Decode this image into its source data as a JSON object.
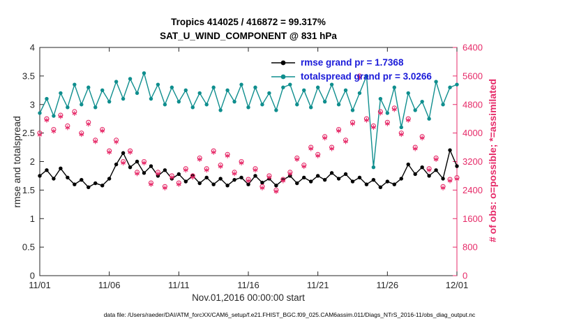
{
  "colors": {
    "axis": "#262626",
    "rmse": "#000000",
    "totalspread": "#0f8e8e",
    "obs": "#e62a68",
    "legend_text": "#1a1ad9"
  },
  "chart_data": {
    "type": "line",
    "title": "Tropics 414025 / 416872 = 99.317%",
    "subtitle": "SAT_U_WIND_COMPONENT @ 831 hPa",
    "xlabel": "Nov.01,2016 00:00:00 start",
    "ylabel_left": "rmse and totalspread",
    "ylabel_right": "# of obs: o=possible; *=assimilated",
    "datafile": "data file: /Users/raeder/DAI/ATM_forcXX/CAM6_setup/f.e21.FHIST_BGC.f09_025.CAM6assim.011/Diags_NTrS_2016-11/obs_diag_output.nc",
    "x_step_days": 0.5,
    "x_range_days": [
      0,
      30
    ],
    "x_ticks": [
      0,
      5,
      10,
      15,
      20,
      25,
      30
    ],
    "x_tick_labels": [
      "11/01",
      "11/06",
      "11/11",
      "11/16",
      "11/21",
      "11/26",
      "12/01"
    ],
    "y_left": {
      "min": 0,
      "max": 4,
      "ticks": [
        0,
        0.5,
        1,
        1.5,
        2,
        2.5,
        3,
        3.5,
        4
      ],
      "tick_labels": [
        "0",
        "0.5",
        "1",
        "1.5",
        "2",
        "2.5",
        "3",
        "3.5",
        "4"
      ]
    },
    "y_right": {
      "min": 0,
      "max": 6400,
      "ticks": [
        0,
        800,
        1600,
        2400,
        3200,
        4000,
        4800,
        5600,
        6400
      ],
      "tick_labels": [
        "0",
        "800",
        "1600",
        "2400",
        "3200",
        "4000",
        "4800",
        "5600",
        "6400"
      ]
    },
    "grid": false,
    "legend_position": "top-center-inside",
    "series": [
      {
        "name": "rmse grand pr = 1.7368",
        "color_key": "rmse",
        "axis": "left",
        "values": [
          1.75,
          1.85,
          1.7,
          1.88,
          1.72,
          1.6,
          1.68,
          1.55,
          1.62,
          1.58,
          1.7,
          1.95,
          2.15,
          1.9,
          2.0,
          1.8,
          1.92,
          1.75,
          1.85,
          1.7,
          1.78,
          1.65,
          1.75,
          1.62,
          1.72,
          1.6,
          1.7,
          1.58,
          1.68,
          1.72,
          1.6,
          1.75,
          1.63,
          1.7,
          1.58,
          1.68,
          1.75,
          1.62,
          1.72,
          1.65,
          1.75,
          1.68,
          1.8,
          1.7,
          1.78,
          1.65,
          1.72,
          1.6,
          1.68,
          1.55,
          1.65,
          1.6,
          1.7,
          1.95,
          1.78,
          1.9,
          1.75,
          1.85,
          1.7,
          2.2,
          1.92
        ]
      },
      {
        "name": "totalspread grand pr = 3.0266",
        "color_key": "totalspread",
        "axis": "left",
        "values": [
          2.85,
          3.1,
          2.8,
          3.2,
          2.95,
          3.35,
          3.0,
          3.3,
          2.95,
          3.25,
          3.05,
          3.4,
          3.1,
          3.45,
          3.2,
          3.55,
          3.1,
          3.35,
          3.0,
          3.3,
          3.05,
          3.25,
          2.95,
          3.2,
          3.0,
          3.3,
          2.9,
          3.25,
          3.05,
          3.35,
          2.95,
          3.3,
          3.0,
          3.2,
          2.9,
          3.3,
          3.35,
          3.0,
          3.25,
          2.95,
          3.3,
          3.05,
          3.35,
          3.0,
          3.25,
          2.9,
          3.2,
          3.5,
          1.9,
          3.1,
          2.85,
          3.3,
          2.6,
          3.2,
          2.9,
          3.05,
          2.75,
          3.4,
          3.0,
          3.3,
          3.35
        ]
      }
    ],
    "scatter": [
      {
        "name": "possible",
        "marker": "o",
        "color_key": "obs",
        "axis": "right",
        "values": [
          4000,
          4400,
          4100,
          4500,
          4200,
          4600,
          4000,
          4300,
          3800,
          4100,
          3500,
          3800,
          3200,
          3500,
          2900,
          3200,
          2600,
          2900,
          2500,
          2800,
          2600,
          3000,
          2800,
          3300,
          3000,
          3500,
          3100,
          3400,
          2900,
          3200,
          2700,
          3000,
          2500,
          2800,
          2400,
          2700,
          2900,
          3300,
          3100,
          3600,
          3400,
          3900,
          3600,
          4100,
          3800,
          4300,
          5600,
          4400,
          4200,
          4600,
          4300,
          4700,
          4000,
          4400,
          3600,
          3900,
          3000,
          3300,
          2500,
          2700,
          2750
        ]
      },
      {
        "name": "assimilated",
        "marker": "*",
        "color_key": "obs",
        "axis": "right",
        "values": [
          3950,
          4360,
          4050,
          4460,
          4150,
          4550,
          3960,
          4250,
          3760,
          4060,
          3460,
          3750,
          3160,
          3460,
          2860,
          3160,
          2560,
          2860,
          2460,
          2760,
          2560,
          2960,
          2760,
          3260,
          2960,
          3460,
          3060,
          3360,
          2860,
          3160,
          2660,
          2960,
          2460,
          2760,
          2360,
          2660,
          2860,
          3260,
          3060,
          3560,
          3360,
          3860,
          3560,
          4060,
          3760,
          4260,
          5560,
          4360,
          4160,
          4560,
          4260,
          4660,
          3960,
          4360,
          3560,
          3860,
          2960,
          3260,
          2460,
          2660,
          2710
        ]
      }
    ],
    "legend": [
      {
        "label": "rmse grand pr = 1.7368"
      },
      {
        "label": "totalspread grand pr = 3.0266"
      }
    ]
  }
}
